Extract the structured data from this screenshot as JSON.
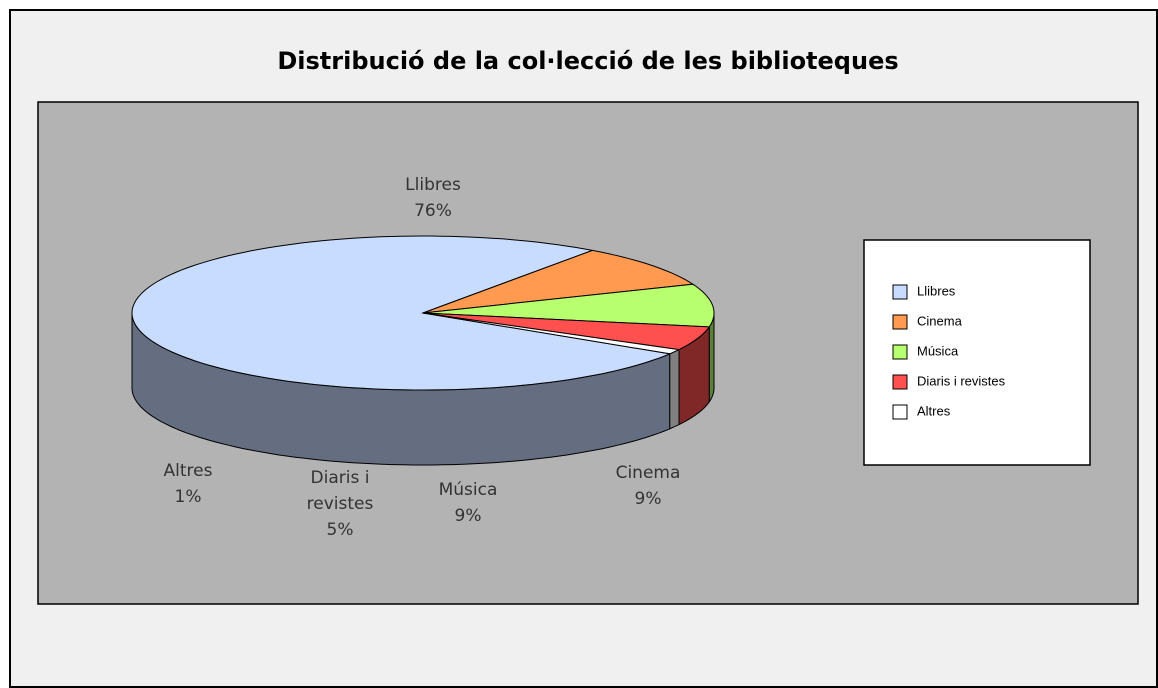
{
  "chart_data": {
    "type": "pie3d",
    "title": "Distribució de la col·lecció de les biblioteques",
    "categories": [
      "Llibres",
      "Cinema",
      "Música",
      "Diaris i revistes",
      "Altres"
    ],
    "values": [
      76,
      9,
      9,
      5,
      1
    ],
    "value_labels": [
      "76%",
      "9%",
      "9%",
      "5%",
      "1%"
    ],
    "colors": [
      "#c8dcff",
      "#ff9a50",
      "#b8ff70",
      "#ff5050",
      "#ffffff"
    ],
    "legend": "right"
  }
}
